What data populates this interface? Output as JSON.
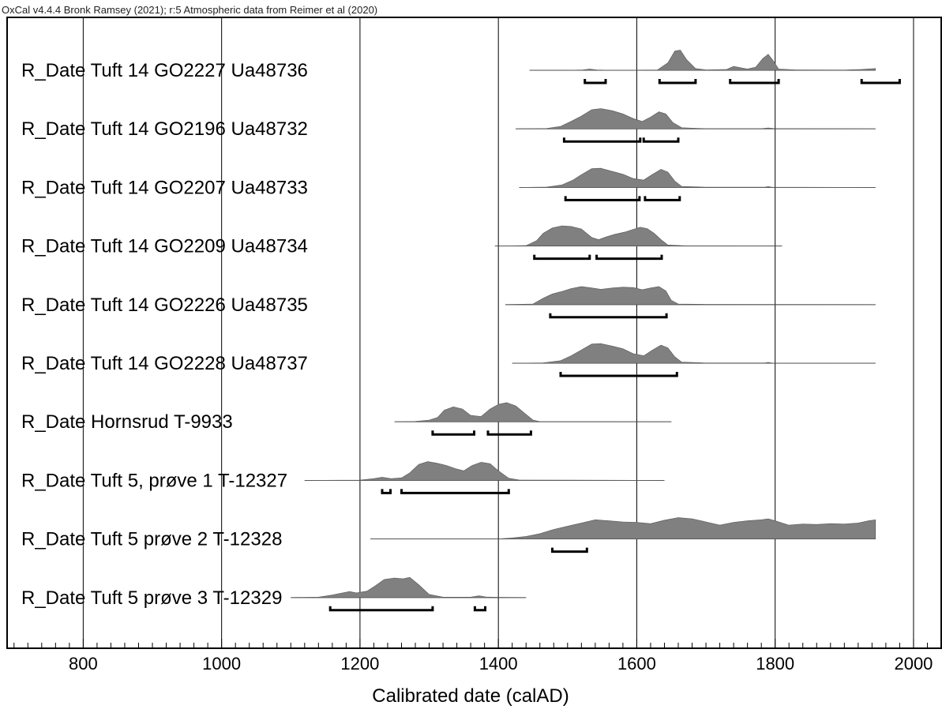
{
  "header": "OxCal v4.4.4 Bronk Ramsey (2021); r:5 Atmospheric data from Reimer et al (2020)",
  "chart_data": {
    "type": "area",
    "xlabel": "Calibrated date (calAD)",
    "xlim": [
      690,
      2040
    ],
    "ticks": [
      800,
      1000,
      1200,
      1400,
      1600,
      1800,
      2000
    ],
    "grid": true,
    "fill_color": "#808080",
    "line_color": "#000000",
    "series": [
      {
        "name": "R_Date Tuft 14 GO2227 Ua48736",
        "range": [
          1445,
          1945
        ],
        "density": [
          [
            1445,
            0
          ],
          [
            1500,
            0
          ],
          [
            1522,
            0.02
          ],
          [
            1532,
            0.06
          ],
          [
            1542,
            0.02
          ],
          [
            1560,
            0
          ],
          [
            1630,
            0.02
          ],
          [
            1645,
            0.35
          ],
          [
            1655,
            0.9
          ],
          [
            1663,
            0.95
          ],
          [
            1672,
            0.5
          ],
          [
            1685,
            0.08
          ],
          [
            1700,
            0.02
          ],
          [
            1730,
            0.04
          ],
          [
            1740,
            0.18
          ],
          [
            1750,
            0.12
          ],
          [
            1760,
            0.06
          ],
          [
            1772,
            0.15
          ],
          [
            1782,
            0.55
          ],
          [
            1790,
            0.75
          ],
          [
            1797,
            0.45
          ],
          [
            1805,
            0.06
          ],
          [
            1830,
            0.02
          ],
          [
            1900,
            0.01
          ],
          [
            1925,
            0.04
          ],
          [
            1945,
            0.08
          ]
        ],
        "hpd": [
          [
            1525,
            1555
          ],
          [
            1633,
            1685
          ],
          [
            1735,
            1805
          ],
          [
            1925,
            1980
          ]
        ]
      },
      {
        "name": "R_Date Tuft 14 GO2196 Ua48732",
        "range": [
          1425,
          1945
        ],
        "density": [
          [
            1425,
            0
          ],
          [
            1470,
            0.02
          ],
          [
            1490,
            0.12
          ],
          [
            1505,
            0.35
          ],
          [
            1520,
            0.6
          ],
          [
            1535,
            0.9
          ],
          [
            1548,
            0.95
          ],
          [
            1565,
            0.85
          ],
          [
            1580,
            0.7
          ],
          [
            1595,
            0.48
          ],
          [
            1608,
            0.35
          ],
          [
            1620,
            0.55
          ],
          [
            1632,
            0.8
          ],
          [
            1642,
            0.7
          ],
          [
            1652,
            0.3
          ],
          [
            1665,
            0.05
          ],
          [
            1700,
            0.01
          ],
          [
            1780,
            0.01
          ],
          [
            1790,
            0.04
          ],
          [
            1800,
            0.01
          ],
          [
            1945,
            0
          ]
        ],
        "hpd": [
          [
            1495,
            1605
          ],
          [
            1610,
            1660
          ]
        ]
      },
      {
        "name": "R_Date Tuft 14 GO2207 Ua48733",
        "range": [
          1430,
          1945
        ],
        "density": [
          [
            1430,
            0
          ],
          [
            1470,
            0.02
          ],
          [
            1492,
            0.12
          ],
          [
            1508,
            0.35
          ],
          [
            1520,
            0.6
          ],
          [
            1535,
            0.88
          ],
          [
            1548,
            0.9
          ],
          [
            1565,
            0.75
          ],
          [
            1580,
            0.62
          ],
          [
            1595,
            0.42
          ],
          [
            1610,
            0.35
          ],
          [
            1622,
            0.6
          ],
          [
            1635,
            0.85
          ],
          [
            1645,
            0.72
          ],
          [
            1655,
            0.3
          ],
          [
            1665,
            0.05
          ],
          [
            1700,
            0.01
          ],
          [
            1785,
            0.01
          ],
          [
            1790,
            0.04
          ],
          [
            1795,
            0.01
          ],
          [
            1945,
            0
          ]
        ],
        "hpd": [
          [
            1497,
            1604
          ],
          [
            1612,
            1662
          ]
        ]
      },
      {
        "name": "R_Date Tuft 14 GO2209 Ua48734",
        "range": [
          1395,
          1810
        ],
        "density": [
          [
            1395,
            0
          ],
          [
            1440,
            0.02
          ],
          [
            1455,
            0.25
          ],
          [
            1465,
            0.6
          ],
          [
            1478,
            0.85
          ],
          [
            1492,
            0.95
          ],
          [
            1505,
            0.92
          ],
          [
            1520,
            0.8
          ],
          [
            1535,
            0.4
          ],
          [
            1545,
            0.3
          ],
          [
            1555,
            0.42
          ],
          [
            1568,
            0.55
          ],
          [
            1582,
            0.65
          ],
          [
            1595,
            0.78
          ],
          [
            1605,
            0.88
          ],
          [
            1615,
            0.82
          ],
          [
            1625,
            0.6
          ],
          [
            1635,
            0.3
          ],
          [
            1645,
            0.05
          ],
          [
            1670,
            0.01
          ],
          [
            1810,
            0
          ]
        ],
        "hpd": [
          [
            1452,
            1532
          ],
          [
            1542,
            1636
          ]
        ]
      },
      {
        "name": "R_Date Tuft 14 GO2226 Ua48735",
        "range": [
          1410,
          1945
        ],
        "density": [
          [
            1410,
            0
          ],
          [
            1450,
            0.03
          ],
          [
            1465,
            0.3
          ],
          [
            1478,
            0.5
          ],
          [
            1490,
            0.6
          ],
          [
            1505,
            0.75
          ],
          [
            1520,
            0.85
          ],
          [
            1535,
            0.78
          ],
          [
            1548,
            0.72
          ],
          [
            1565,
            0.78
          ],
          [
            1580,
            0.82
          ],
          [
            1595,
            0.8
          ],
          [
            1608,
            0.7
          ],
          [
            1620,
            0.78
          ],
          [
            1632,
            0.85
          ],
          [
            1642,
            0.65
          ],
          [
            1650,
            0.2
          ],
          [
            1660,
            0.03
          ],
          [
            1700,
            0.01
          ],
          [
            1945,
            0
          ]
        ],
        "hpd": [
          [
            1475,
            1643
          ]
        ]
      },
      {
        "name": "R_Date Tuft 14 GO2228 Ua48737",
        "range": [
          1420,
          1945
        ],
        "density": [
          [
            1420,
            0
          ],
          [
            1465,
            0.02
          ],
          [
            1490,
            0.12
          ],
          [
            1505,
            0.35
          ],
          [
            1520,
            0.62
          ],
          [
            1535,
            0.9
          ],
          [
            1548,
            0.92
          ],
          [
            1565,
            0.8
          ],
          [
            1580,
            0.68
          ],
          [
            1595,
            0.45
          ],
          [
            1610,
            0.35
          ],
          [
            1622,
            0.6
          ],
          [
            1635,
            0.85
          ],
          [
            1645,
            0.72
          ],
          [
            1655,
            0.3
          ],
          [
            1665,
            0.05
          ],
          [
            1700,
            0.01
          ],
          [
            1785,
            0.01
          ],
          [
            1790,
            0.04
          ],
          [
            1795,
            0.01
          ],
          [
            1945,
            0
          ]
        ],
        "hpd": [
          [
            1490,
            1658
          ]
        ]
      },
      {
        "name": "R_Date Hornsrud T-9933",
        "range": [
          1250,
          1650
        ],
        "density": [
          [
            1250,
            0
          ],
          [
            1280,
            0.02
          ],
          [
            1300,
            0.08
          ],
          [
            1312,
            0.2
          ],
          [
            1322,
            0.55
          ],
          [
            1335,
            0.7
          ],
          [
            1348,
            0.6
          ],
          [
            1360,
            0.3
          ],
          [
            1375,
            0.25
          ],
          [
            1388,
            0.6
          ],
          [
            1400,
            0.82
          ],
          [
            1412,
            0.9
          ],
          [
            1425,
            0.75
          ],
          [
            1440,
            0.35
          ],
          [
            1450,
            0.08
          ],
          [
            1460,
            0.01
          ],
          [
            1650,
            0
          ]
        ],
        "hpd": [
          [
            1305,
            1365
          ],
          [
            1385,
            1447
          ]
        ]
      },
      {
        "name": "R_Date Tuft 5, prøve 1 T-12327",
        "range": [
          1120,
          1640
        ],
        "density": [
          [
            1120,
            0
          ],
          [
            1200,
            0.01
          ],
          [
            1220,
            0.08
          ],
          [
            1232,
            0.15
          ],
          [
            1245,
            0.08
          ],
          [
            1260,
            0.12
          ],
          [
            1272,
            0.35
          ],
          [
            1285,
            0.75
          ],
          [
            1298,
            0.88
          ],
          [
            1312,
            0.8
          ],
          [
            1325,
            0.7
          ],
          [
            1338,
            0.55
          ],
          [
            1350,
            0.45
          ],
          [
            1362,
            0.7
          ],
          [
            1375,
            0.85
          ],
          [
            1388,
            0.78
          ],
          [
            1400,
            0.45
          ],
          [
            1415,
            0.1
          ],
          [
            1430,
            0.02
          ],
          [
            1640,
            0
          ]
        ],
        "hpd": [
          [
            1232,
            1244
          ],
          [
            1260,
            1415
          ]
        ]
      },
      {
        "name": "R_Date Tuft 5 prøve 2 T-12328",
        "range": [
          1215,
          1945
        ],
        "density": [
          [
            1215,
            0
          ],
          [
            1400,
            0
          ],
          [
            1420,
            0.05
          ],
          [
            1440,
            0.12
          ],
          [
            1460,
            0.25
          ],
          [
            1480,
            0.45
          ],
          [
            1500,
            0.6
          ],
          [
            1520,
            0.75
          ],
          [
            1540,
            0.9
          ],
          [
            1560,
            0.85
          ],
          [
            1580,
            0.8
          ],
          [
            1600,
            0.78
          ],
          [
            1620,
            0.72
          ],
          [
            1640,
            0.88
          ],
          [
            1660,
            1.0
          ],
          [
            1680,
            0.95
          ],
          [
            1700,
            0.8
          ],
          [
            1720,
            0.65
          ],
          [
            1740,
            0.78
          ],
          [
            1760,
            0.85
          ],
          [
            1780,
            0.9
          ],
          [
            1790,
            0.95
          ],
          [
            1800,
            0.85
          ],
          [
            1820,
            0.65
          ],
          [
            1840,
            0.7
          ],
          [
            1860,
            0.68
          ],
          [
            1880,
            0.72
          ],
          [
            1900,
            0.7
          ],
          [
            1920,
            0.75
          ],
          [
            1935,
            0.85
          ],
          [
            1945,
            0.9
          ]
        ],
        "hpd": [
          [
            1478,
            1528
          ]
        ]
      },
      {
        "name": "R_Date Tuft 5 prøve 3 T-12329",
        "range": [
          1100,
          1440
        ],
        "density": [
          [
            1100,
            0
          ],
          [
            1140,
            0.02
          ],
          [
            1160,
            0.12
          ],
          [
            1175,
            0.22
          ],
          [
            1185,
            0.28
          ],
          [
            1195,
            0.22
          ],
          [
            1210,
            0.3
          ],
          [
            1222,
            0.55
          ],
          [
            1235,
            0.85
          ],
          [
            1250,
            0.92
          ],
          [
            1262,
            0.88
          ],
          [
            1272,
            0.95
          ],
          [
            1285,
            0.6
          ],
          [
            1300,
            0.15
          ],
          [
            1320,
            0.02
          ],
          [
            1360,
            0.02
          ],
          [
            1372,
            0.08
          ],
          [
            1382,
            0.03
          ],
          [
            1400,
            0.01
          ],
          [
            1440,
            0
          ]
        ],
        "hpd": [
          [
            1157,
            1305
          ],
          [
            1366,
            1381
          ]
        ]
      }
    ]
  }
}
